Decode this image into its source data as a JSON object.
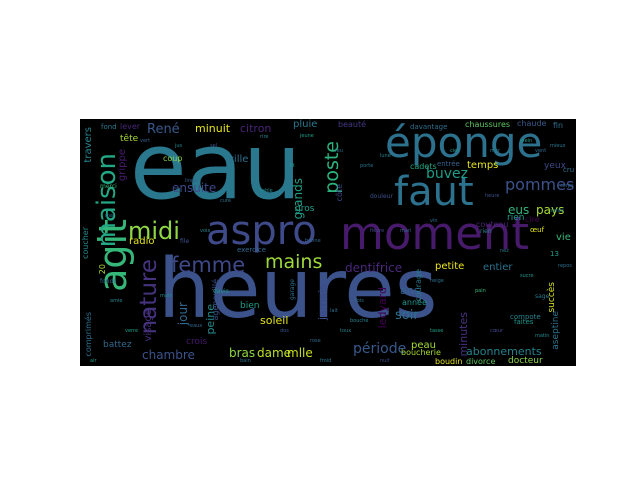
{
  "background_color": "#000000",
  "palette": [
    "#30678d",
    "#35b778",
    "#fde724",
    "#481b6d",
    "#443982",
    "#20928c",
    "#90d743",
    "#21918c",
    "#3b518b",
    "#5dc962"
  ],
  "words": [
    {
      "text": "eau",
      "color": "#2a788e"
    },
    {
      "text": "heures",
      "color": "#3b528b"
    },
    {
      "text": "moment",
      "color": "#481a6c"
    },
    {
      "text": "éponge",
      "color": "#2c718e"
    },
    {
      "text": "faut",
      "color": "#2c728e"
    },
    {
      "text": "aspro",
      "color": "#3e4a89"
    },
    {
      "text": "agit",
      "color": "#35b779"
    },
    {
      "text": "maison",
      "color": "#22a884"
    },
    {
      "text": "midi",
      "color": "#8fd744"
    },
    {
      "text": "nature",
      "color": "#46337f"
    },
    {
      "text": "femme",
      "color": "#3e4989"
    },
    {
      "text": "mains",
      "color": "#9fda3a"
    },
    {
      "text": "poste",
      "color": "#2db27d"
    },
    {
      "text": "pommes",
      "color": "#3b528b"
    },
    {
      "text": "buvez",
      "color": "#1f9e89"
    },
    {
      "text": "période",
      "color": "#38598c"
    },
    {
      "text": "dentifrice",
      "color": "#482878"
    },
    {
      "text": "ensuite",
      "color": "#3e4989"
    },
    {
      "text": "chambre",
      "color": "#3b528b"
    },
    {
      "text": "bras",
      "color": "#8fd744"
    },
    {
      "text": "dame",
      "color": "#bddf26"
    },
    {
      "text": "mlle",
      "color": "#c8e020"
    },
    {
      "text": "jour",
      "color": "#31688e"
    },
    {
      "text": "peine",
      "color": "#238a8d"
    },
    {
      "text": "soleil",
      "color": "#e5e419"
    },
    {
      "text": "abonnements",
      "color": "#26828e"
    },
    {
      "text": "jamais",
      "color": "#3e4989"
    },
    {
      "text": "ledyard",
      "color": "#440154"
    },
    {
      "text": "soir",
      "color": "#2c718e"
    },
    {
      "text": "minutes",
      "color": "#46337f"
    },
    {
      "text": "grands",
      "color": "#1fa088"
    },
    {
      "text": "eus",
      "color": "#31b57b"
    },
    {
      "text": "pays",
      "color": "#a8db34"
    },
    {
      "text": "René",
      "color": "#38598c"
    },
    {
      "text": "minuit",
      "color": "#e5e419"
    },
    {
      "text": "citron",
      "color": "#482475"
    },
    {
      "text": "pluie",
      "color": "#2a788e"
    },
    {
      "text": "radio",
      "color": "#e5e419"
    },
    {
      "text": "ville",
      "color": "#2e6e8e"
    },
    {
      "text": "tête",
      "color": "#a8db34"
    },
    {
      "text": "grippe",
      "color": "#481b6d"
    },
    {
      "text": "visage",
      "color": "#46307e"
    },
    {
      "text": "temps",
      "color": "#e5e419"
    },
    {
      "text": "peau",
      "color": "#a5db36"
    },
    {
      "text": "entier",
      "color": "#2c728e"
    },
    {
      "text": "petite",
      "color": "#ece51b"
    },
    {
      "text": "ans",
      "color": "#34618d"
    },
    {
      "text": "rien",
      "color": "#1f9e89"
    },
    {
      "text": "vie",
      "color": "#37b878"
    },
    {
      "text": "yeux",
      "color": "#3e4989"
    },
    {
      "text": "succès",
      "color": "#d5e21a"
    },
    {
      "text": "aseptine",
      "color": "#2c718e"
    },
    {
      "text": "docteur",
      "color": "#8bd646"
    },
    {
      "text": "divorce",
      "color": "#5ec962"
    },
    {
      "text": "boudin",
      "color": "#e5e419"
    },
    {
      "text": "courage",
      "color": "#2a788e"
    },
    {
      "text": "année",
      "color": "#1f968b"
    },
    {
      "text": "crois",
      "color": "#48196b"
    },
    {
      "text": "battez",
      "color": "#31688e"
    },
    {
      "text": "comprimés",
      "color": "#2e6f8e"
    },
    {
      "text": "travers",
      "color": "#25848e"
    },
    {
      "text": "coup",
      "color": "#8bd646"
    },
    {
      "text": "gros",
      "color": "#1fa088"
    },
    {
      "text": "beauté",
      "color": "#443983"
    },
    {
      "text": "chaussures",
      "color": "#5ec962"
    },
    {
      "text": "chaude",
      "color": "#38598c"
    },
    {
      "text": "fin",
      "color": "#2e6f8e"
    },
    {
      "text": "cadets",
      "color": "#22a884"
    },
    {
      "text": "couteau",
      "color": "#482475"
    },
    {
      "text": "boucherie",
      "color": "#a8db34"
    },
    {
      "text": "œuf",
      "color": "#e5e419"
    },
    {
      "text": "cire",
      "color": "#440154"
    },
    {
      "text": "côté",
      "color": "#3e4989"
    },
    {
      "text": "exercice",
      "color": "#31688e"
    },
    {
      "text": "agenouillé",
      "color": "#3b528b"
    },
    {
      "text": "lever",
      "color": "#482878"
    },
    {
      "text": "bien",
      "color": "#1f9e89"
    },
    {
      "text": "fond",
      "color": "#2a788e"
    },
    {
      "text": "coucher",
      "color": "#238a8d"
    },
    {
      "text": "compote",
      "color": "#26828e"
    },
    {
      "text": "entrée",
      "color": "#34618d"
    },
    {
      "text": "davantage",
      "color": "#2e6f8e"
    },
    {
      "text": "douleur",
      "color": "#3b528b"
    },
    {
      "text": "faites",
      "color": "#1f968b"
    },
    {
      "text": "rien",
      "color": "#25848e"
    },
    {
      "text": "20",
      "color": "#a8db34"
    },
    {
      "text": "13",
      "color": "#1fa088"
    },
    {
      "text": "cru",
      "color": "#2c728e"
    },
    {
      "text": "sage",
      "color": "#2a788e"
    },
    {
      "text": "fonds",
      "color": "#31688e"
    },
    {
      "text": "file",
      "color": "#3b528b"
    },
    {
      "text": "garage",
      "color": "#2c718e"
    },
    {
      "text": "davis",
      "color": "#1f968b"
    },
    {
      "text": "merci",
      "color": "#35b779"
    },
    {
      "text": "lait",
      "color": "#2e6f8e"
    },
    {
      "text": "bouche",
      "color": "#26828e"
    },
    {
      "text": "fièvre",
      "color": "#3e4989"
    },
    {
      "text": "linge",
      "color": "#34618d"
    },
    {
      "text": "table",
      "color": "#238a8d"
    },
    {
      "text": "cure",
      "color": "#2c718e"
    },
    {
      "text": "lit",
      "color": "#1f9e89"
    },
    {
      "text": "rose",
      "color": "#31688e"
    },
    {
      "text": "toux",
      "color": "#26828e"
    },
    {
      "text": "dos",
      "color": "#3b528b"
    },
    {
      "text": "nez",
      "color": "#2a788e"
    },
    {
      "text": "sucre",
      "color": "#1f968b"
    },
    {
      "text": "pain",
      "color": "#35b779"
    },
    {
      "text": "vin",
      "color": "#2c728e"
    },
    {
      "text": "mari",
      "color": "#34618d"
    },
    {
      "text": "amie",
      "color": "#26828e"
    },
    {
      "text": "verre",
      "color": "#1fa088"
    },
    {
      "text": "bain",
      "color": "#2e6f8e"
    },
    {
      "text": "froid",
      "color": "#2a788e"
    },
    {
      "text": "nuit",
      "color": "#3e4989"
    },
    {
      "text": "main",
      "color": "#238a8d"
    },
    {
      "text": "eaux",
      "color": "#31688e"
    },
    {
      "text": "rire",
      "color": "#26828e"
    },
    {
      "text": "jeune",
      "color": "#1f9e89"
    },
    {
      "text": "porte",
      "color": "#2c718e"
    },
    {
      "text": "heure",
      "color": "#3b528b"
    },
    {
      "text": "plein",
      "color": "#1f968b"
    },
    {
      "text": "mieux",
      "color": "#2a788e"
    },
    {
      "text": "corps",
      "color": "#34618d"
    },
    {
      "text": "santé",
      "color": "#26828e"
    },
    {
      "text": "repos",
      "color": "#2e6f8e"
    },
    {
      "text": "matin",
      "color": "#238a8d"
    },
    {
      "text": "cœur",
      "color": "#3e4989"
    },
    {
      "text": "tasse",
      "color": "#1fa088"
    },
    {
      "text": "fois",
      "color": "#2c728e"
    },
    {
      "text": "bonne",
      "color": "#31688e"
    },
    {
      "text": "voix",
      "color": "#26828e"
    },
    {
      "text": "mal",
      "color": "#2a788e"
    },
    {
      "text": "air",
      "color": "#1f9e89"
    },
    {
      "text": "vert",
      "color": "#34618d"
    },
    {
      "text": "jus",
      "color": "#238a8d"
    },
    {
      "text": "sel",
      "color": "#3b528b"
    },
    {
      "text": "feu",
      "color": "#2e6f8e"
    },
    {
      "text": "lune",
      "color": "#26828e"
    },
    {
      "text": "ciel",
      "color": "#1f968b"
    },
    {
      "text": "mer",
      "color": "#2a788e"
    },
    {
      "text": "vent",
      "color": "#31688e"
    },
    {
      "text": "neige",
      "color": "#2c718e"
    }
  ]
}
